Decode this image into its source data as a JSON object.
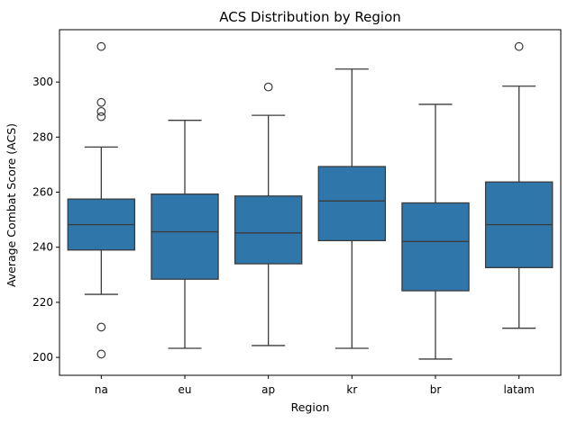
{
  "chart_data": {
    "type": "box",
    "title": "ACS Distribution by Region",
    "xlabel": "Region",
    "ylabel": "Average Combat Score (ACS)",
    "ylim": [
      193.5,
      319
    ],
    "yticks": [
      200,
      220,
      240,
      260,
      280,
      300
    ],
    "grid": false,
    "legend": "none",
    "box_color": "#2f76ab",
    "line_color": "#3b3b3b",
    "categories": [
      "na",
      "eu",
      "ap",
      "kr",
      "br",
      "latam"
    ],
    "boxes": [
      {
        "category": "na",
        "whisker_low": 222.9,
        "q1": 239.0,
        "median": 248.2,
        "q3": 257.5,
        "whisker_high": 276.4,
        "outliers": [
          312.9,
          292.6,
          289.3,
          287.4,
          211.0,
          201.2
        ]
      },
      {
        "category": "eu",
        "whisker_low": 203.3,
        "q1": 228.4,
        "median": 245.6,
        "q3": 259.3,
        "whisker_high": 286.1,
        "outliers": []
      },
      {
        "category": "ap",
        "whisker_low": 204.3,
        "q1": 234.0,
        "median": 245.2,
        "q3": 258.6,
        "whisker_high": 287.9,
        "outliers": [
          298.2
        ]
      },
      {
        "category": "kr",
        "whisker_low": 203.3,
        "q1": 242.4,
        "median": 256.8,
        "q3": 269.3,
        "whisker_high": 304.7,
        "outliers": []
      },
      {
        "category": "br",
        "whisker_low": 199.4,
        "q1": 224.2,
        "median": 242.1,
        "q3": 256.1,
        "whisker_high": 291.9,
        "outliers": []
      },
      {
        "category": "latam",
        "whisker_low": 210.6,
        "q1": 232.6,
        "median": 248.2,
        "q3": 263.7,
        "whisker_high": 298.5,
        "outliers": [
          312.9
        ]
      }
    ]
  }
}
